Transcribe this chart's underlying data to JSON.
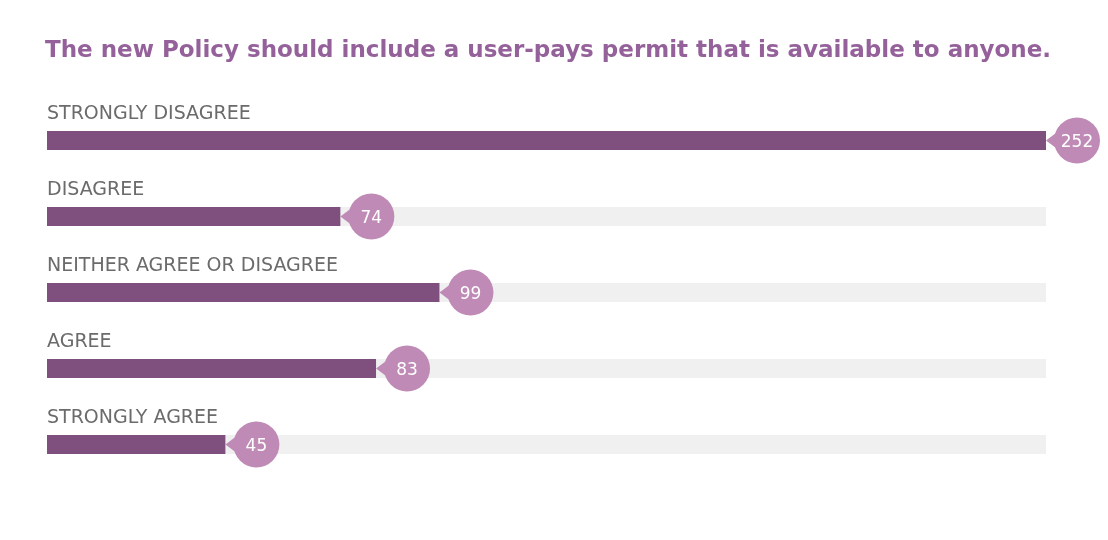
{
  "chart_data": {
    "type": "bar",
    "orientation": "horizontal",
    "title": "The new Policy should include a user-pays permit that is available to anyone.",
    "categories": [
      "STRONGLY DISAGREE",
      "DISAGREE",
      "NEITHER AGREE OR DISAGREE",
      "AGREE",
      "STRONGLY AGREE"
    ],
    "values": [
      252,
      74,
      99,
      83,
      45
    ],
    "color": "#7f4f7e",
    "data_labels": true
  }
}
